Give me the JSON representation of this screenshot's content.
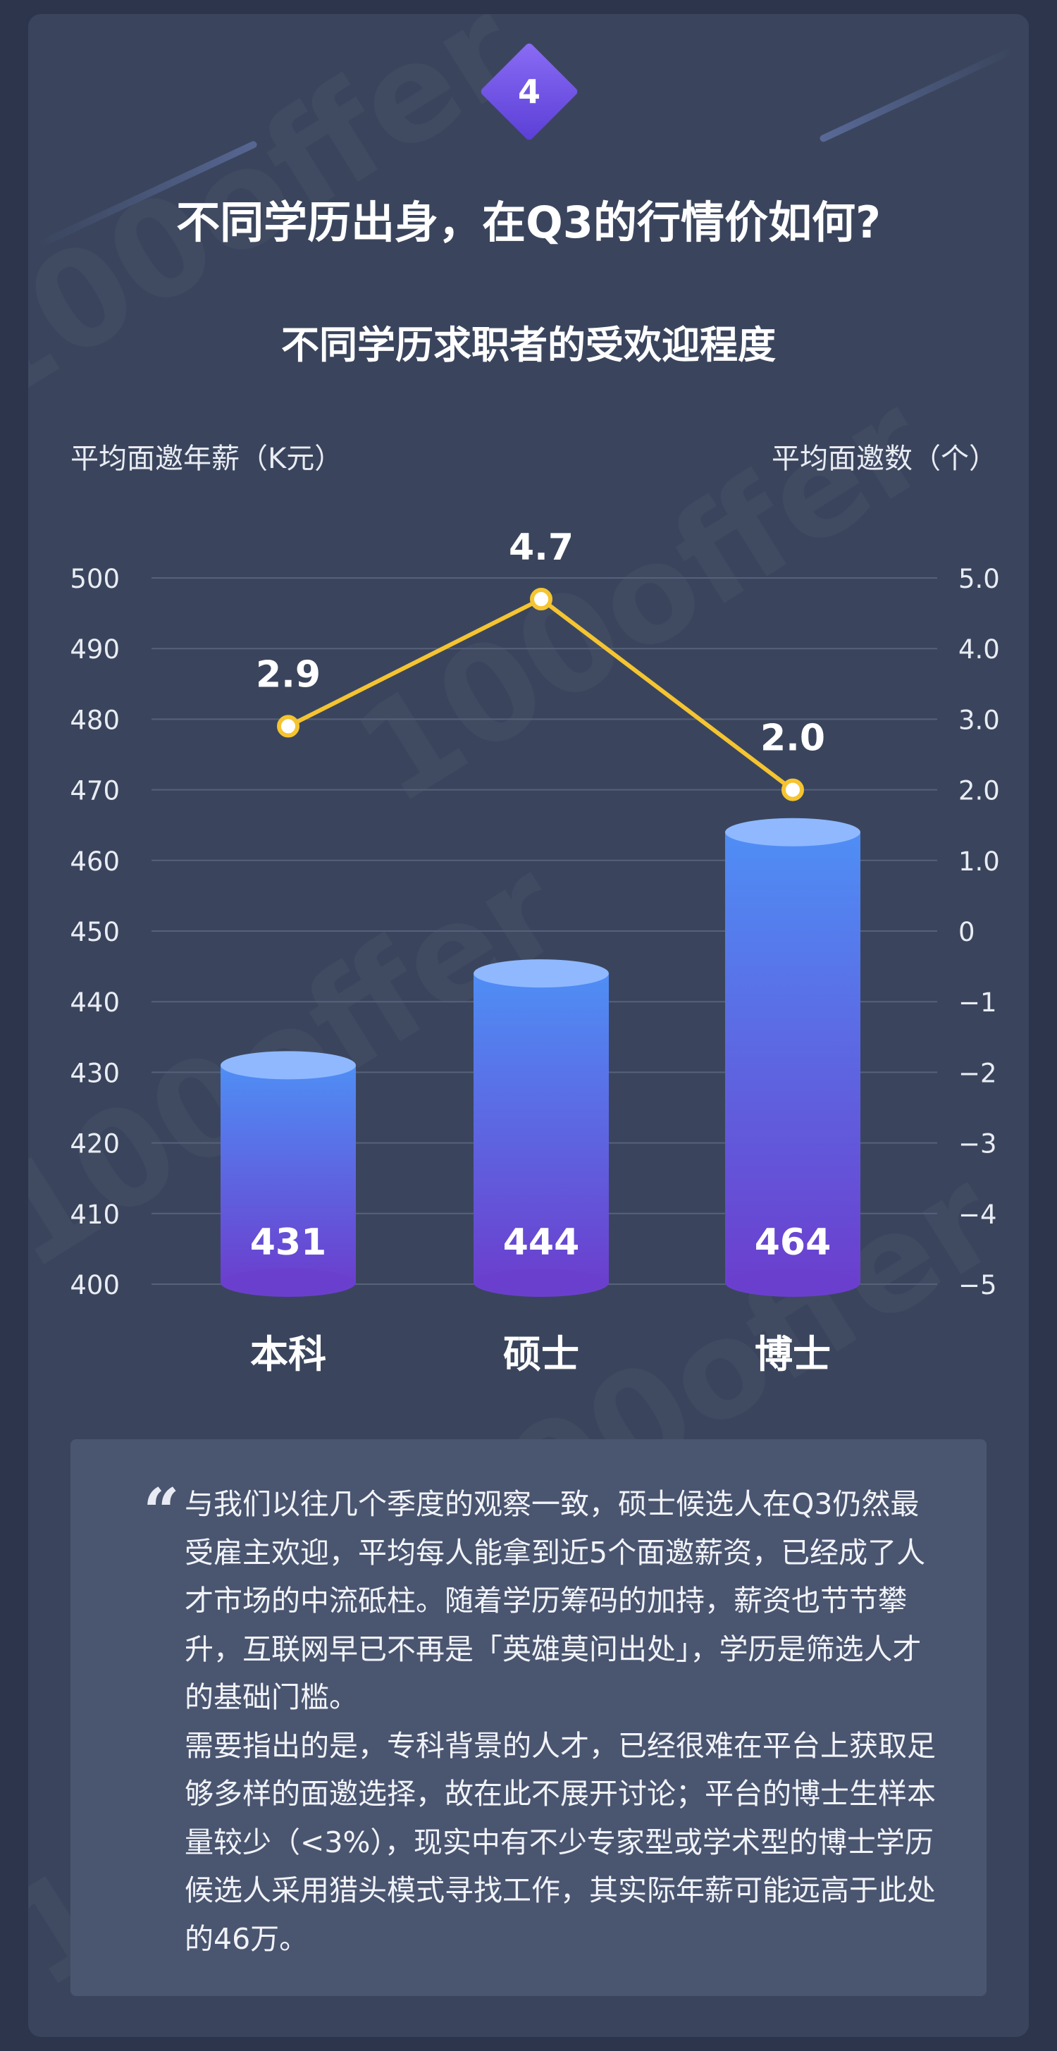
{
  "header": {
    "badge_number": "4",
    "headline": "不同学历出身，在Q3的行情价如何?"
  },
  "watermark_text": "100offer",
  "chart_data": {
    "type": "bar+line",
    "title": "不同学历求职者的受欢迎程度",
    "categories": [
      "本科",
      "硕士",
      "博士"
    ],
    "left_axis": {
      "label": "平均面邀年薪（K元）",
      "ticks": [
        "500",
        "490",
        "480",
        "470",
        "460",
        "450",
        "440",
        "430",
        "420",
        "410",
        "400"
      ],
      "ylim": [
        400,
        500
      ]
    },
    "right_axis": {
      "label": "平均面邀数（个）",
      "ticks": [
        "5.0",
        "4.0",
        "3.0",
        "2.0",
        "1.0",
        "0",
        "−1",
        "−2",
        "−3",
        "−4",
        "−5"
      ],
      "ylim": [
        -5,
        5
      ]
    },
    "series": [
      {
        "kind": "bar",
        "axis": "left",
        "values": [
          431,
          444,
          464
        ],
        "labels": [
          "431",
          "444",
          "464"
        ]
      },
      {
        "kind": "line",
        "axis": "right",
        "values": [
          2.9,
          4.7,
          2.0
        ],
        "labels": [
          "2.9",
          "4.7",
          "2.0"
        ]
      }
    ],
    "grid": true,
    "colors": {
      "bar_top": "#4f8ef5",
      "bar_bottom": "#6b3fce",
      "bar_cap": "#8fb8ff",
      "line": "#f5c431",
      "grid": "#56617a"
    }
  },
  "quote": {
    "mark": "“",
    "paragraphs": [
      "与我们以往几个季度的观察一致，硕士候选人在Q3仍然最受雇主欢迎，平均每人能拿到近5个面邀薪资，已经成了人才市场的中流砥柱。随着学历筹码的加持，薪资也节节攀升，互联网早已不再是「英雄莫问出处」，学历是筛选人才的基础门槛。",
      "需要指出的是，专科背景的人才，已经很难在平台上获取足够多样的面邀选择，故在此不展开讨论；平台的博士生样本量较少（<3%），现实中有不少专家型或学术型的博士学历候选人采用猎头模式寻找工作，其实际年薪可能远高于此处的46万。"
    ]
  }
}
